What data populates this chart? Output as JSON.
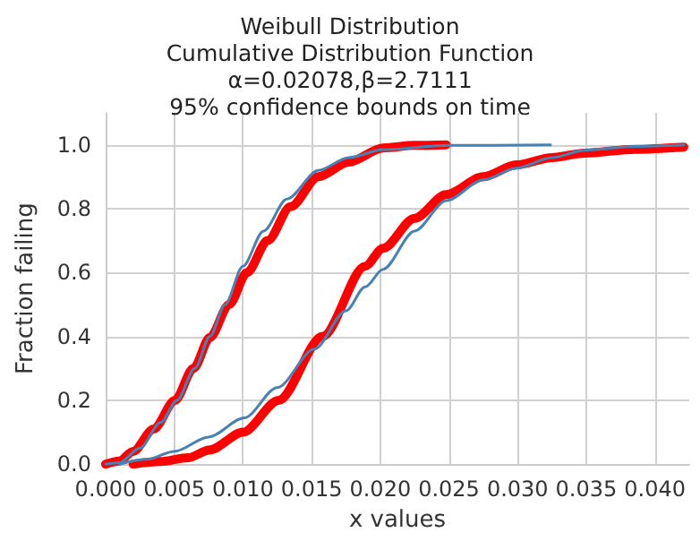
{
  "chart_data": {
    "type": "line",
    "title": "Weibull Distribution\nCumulative Distribution Function\nα=0.02078,β=2.7111\n95% confidence bounds on time",
    "xlabel": "x values",
    "ylabel": "Fraction failing",
    "series": [
      {
        "color": "#ff0000",
        "x": [
          0,
          0.001,
          0.002,
          0.0035,
          0.00505,
          0.0064,
          0.0076,
          0.009,
          0.0103,
          0.0118,
          0.01347,
          0.0155,
          0.0177,
          0.0202,
          0.0225,
          0.0248
        ],
        "values": [
          0,
          0.01,
          0.04,
          0.11,
          0.2,
          0.3,
          0.397,
          0.5,
          0.6,
          0.7,
          0.806,
          0.9,
          0.946,
          0.99,
          0.998,
          1.0
        ]
      },
      {
        "color": "#4682b4",
        "x": [
          0,
          0.001,
          0.0025,
          0.004,
          0.0052,
          0.0065,
          0.0076,
          0.0087,
          0.01,
          0.0115,
          0.0132,
          0.0155,
          0.0177,
          0.0202,
          0.025,
          0.0324
        ],
        "values": [
          0,
          0.005,
          0.05,
          0.13,
          0.2,
          0.3,
          0.4,
          0.5,
          0.62,
          0.73,
          0.83,
          0.92,
          0.96,
          0.985,
          0.998,
          1.0
        ]
      },
      {
        "color": "#ff0000",
        "x": [
          0.002,
          0.004,
          0.006,
          0.0076,
          0.01,
          0.0126,
          0.0158,
          0.0189,
          0.0202,
          0.0225,
          0.0248,
          0.0275,
          0.0299,
          0.0325,
          0.0349,
          0.0385,
          0.0421
        ],
        "values": [
          0,
          0.008,
          0.02,
          0.045,
          0.1,
          0.2,
          0.4,
          0.62,
          0.676,
          0.77,
          0.844,
          0.9,
          0.937,
          0.96,
          0.974,
          0.986,
          0.993
        ]
      },
      {
        "color": "#4682b4",
        "x": [
          0.001,
          0.003,
          0.005,
          0.0075,
          0.0101,
          0.0125,
          0.0152,
          0.0175,
          0.0189,
          0.0202,
          0.0225,
          0.0248,
          0.0275,
          0.0299,
          0.0325,
          0.0349,
          0.0385,
          0.0421
        ],
        "values": [
          0,
          0.015,
          0.04,
          0.085,
          0.145,
          0.24,
          0.36,
          0.48,
          0.555,
          0.61,
          0.73,
          0.825,
          0.89,
          0.927,
          0.96,
          0.983,
          0.995,
          1.0
        ]
      }
    ],
    "xlim": [
      0,
      0.0425
    ],
    "ylim": [
      0,
      1.1
    ],
    "xticks": [
      {
        "value": 0,
        "label": "0.000"
      },
      {
        "value": 0.005,
        "label": "0.005"
      },
      {
        "value": 0.01,
        "label": "0.010"
      },
      {
        "value": 0.015,
        "label": "0.015"
      },
      {
        "value": 0.02,
        "label": "0.020"
      },
      {
        "value": 0.025,
        "label": "0.025"
      },
      {
        "value": 0.03,
        "label": "0.030"
      },
      {
        "value": 0.035,
        "label": "0.035"
      },
      {
        "value": 0.04,
        "label": "0.040"
      }
    ],
    "yticks": [
      {
        "value": 0,
        "label": "0.0"
      },
      {
        "value": 0.2,
        "label": "0.2"
      },
      {
        "value": 0.4,
        "label": "0.4"
      },
      {
        "value": 0.6,
        "label": "0.6"
      },
      {
        "value": 0.8,
        "label": "0.8"
      },
      {
        "value": 1.0,
        "label": "1.0"
      }
    ],
    "grid": true,
    "marker": "none",
    "line_style": "solid"
  }
}
